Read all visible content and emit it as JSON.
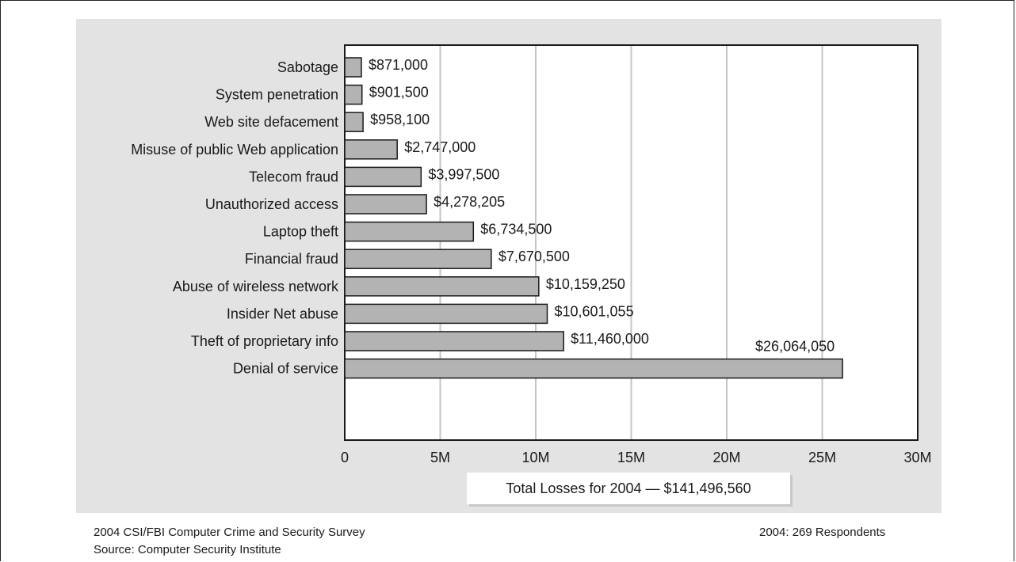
{
  "chart_data": {
    "type": "bar",
    "orientation": "horizontal",
    "categories": [
      "Sabotage",
      "System penetration",
      "Web site defacement",
      "Misuse of public Web application",
      "Telecom fraud",
      "Unauthorized access",
      "Laptop theft",
      "Financial fraud",
      "Abuse of wireless network",
      "Insider Net abuse",
      "Theft of proprietary info",
      "Denial of service"
    ],
    "values": [
      871000,
      901500,
      958100,
      2747000,
      3997500,
      4278205,
      6734500,
      7670500,
      10159250,
      10601055,
      11460000,
      26064050
    ],
    "value_labels": [
      "$871,000",
      "$901,500",
      "$958,100",
      "$2,747,000",
      "$3,997,500",
      "$4,278,205",
      "$6,734,500",
      "$7,670,500",
      "$10,159,250",
      "$10,601,055",
      "$11,460,000",
      "$26,064,050"
    ],
    "xlim": [
      0,
      30000000
    ],
    "x_ticks": [
      0,
      5000000,
      10000000,
      15000000,
      20000000,
      25000000,
      30000000
    ],
    "x_tick_labels": [
      "0",
      "5M",
      "10M",
      "15M",
      "20M",
      "25M",
      "30M"
    ],
    "grid": "vertical",
    "bar_color": "#b3b3b3",
    "annotation": "Total Losses for 2004 — $141,496,560"
  },
  "footer": {
    "survey": "2004 CSI/FBI Computer Crime and Security Survey",
    "source": "Source: Computer Security Institute",
    "respondents": "2004: 269 Respondents"
  }
}
